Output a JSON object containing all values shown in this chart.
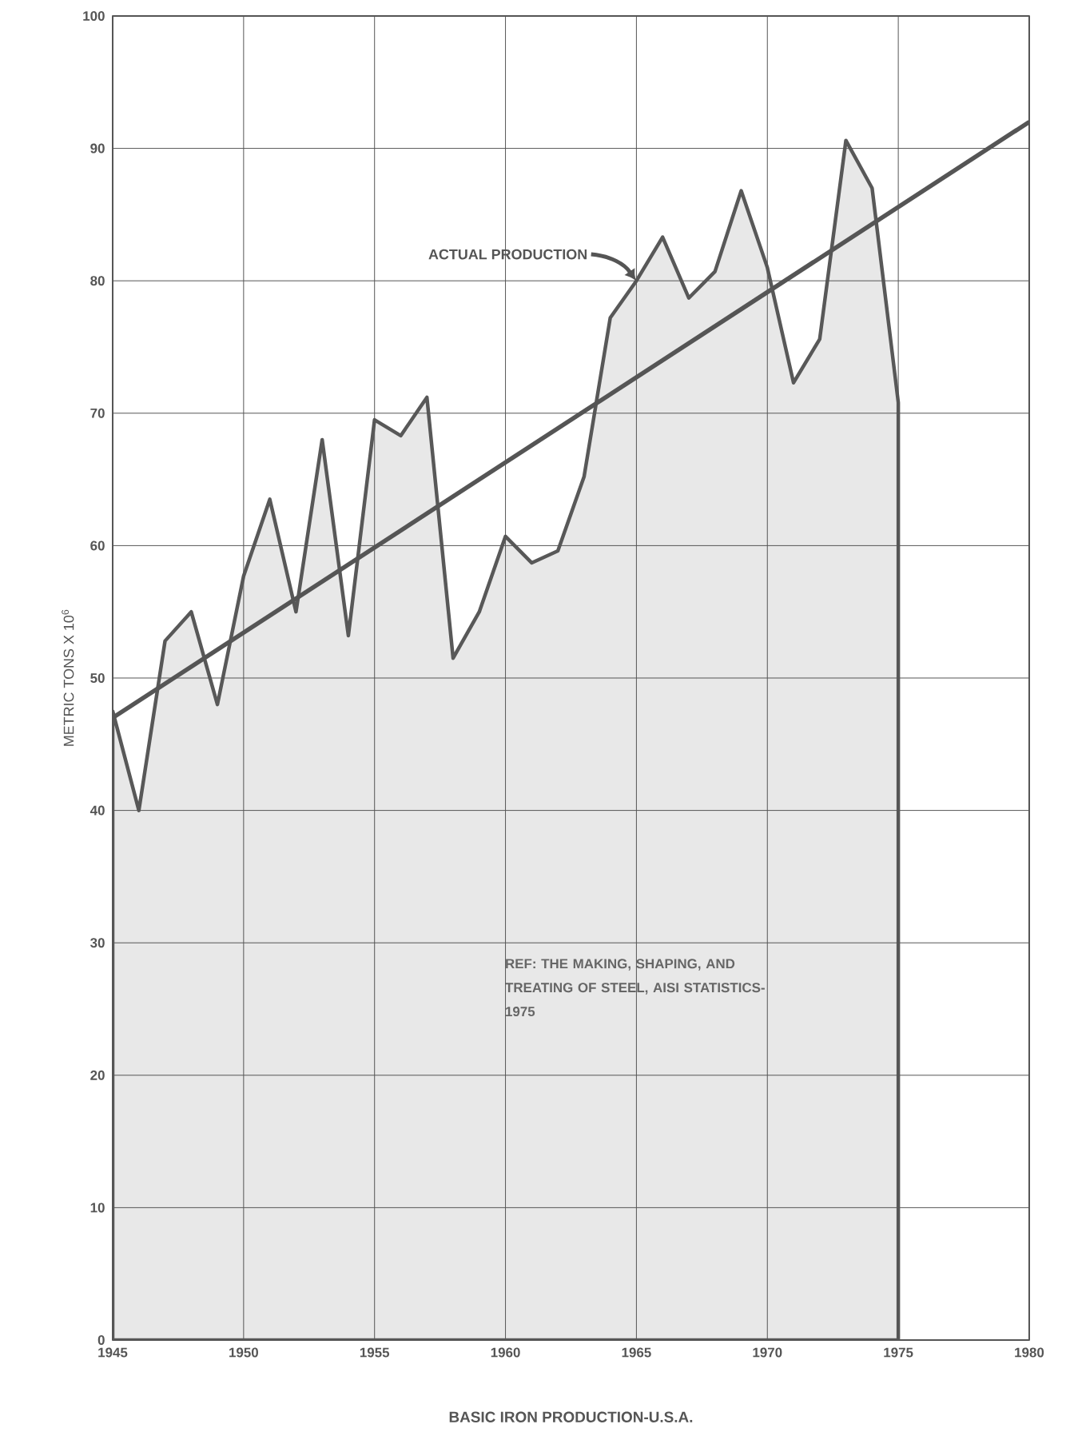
{
  "chart_data": {
    "type": "area",
    "title": "BASIC IRON PRODUCTION-U.S.A.",
    "ylabel": "METRIC TONS X 10$^{6}$",
    "x": [
      1945,
      1946,
      1947,
      1948,
      1949,
      1950,
      1951,
      1952,
      1953,
      1954,
      1955,
      1956,
      1957,
      1958,
      1959,
      1960,
      1961,
      1962,
      1963,
      1964,
      1965,
      1966,
      1967,
      1968,
      1969,
      1970,
      1971,
      1972,
      1973,
      1974,
      1975
    ],
    "series": [
      {
        "color": "#e8e8e8",
        "values": [
          47.5,
          40,
          52.8,
          55,
          48,
          57.7,
          63.5,
          55,
          68,
          53.2,
          69.5,
          68.3,
          71.2,
          51.5,
          55,
          60.7,
          58.7,
          59.6,
          65.2,
          77.2,
          80,
          83.3,
          78.7,
          80.7,
          86.8,
          81,
          72.3,
          75.6,
          90.6,
          87,
          70.8
        ]
      },
      {
        "type": "line",
        "color": "#555555",
        "x": [
          1945,
          1980
        ],
        "values": [
          47,
          92
        ]
      }
    ],
    "xlim": [
      1945,
      1980
    ],
    "ylim": [
      0,
      100
    ],
    "xticks": [
      1945,
      1950,
      1955,
      1960,
      1965,
      1970,
      1975,
      1980
    ],
    "yticks": [
      0,
      10,
      20,
      30,
      40,
      50,
      60,
      70,
      80,
      90,
      100
    ],
    "grid": true,
    "annotations": [
      "ACTUAL PRODUCTION",
      "REF: THE MAKING, SHAPING, AND TREATING OF STEEL, AISI STATISTICS-1975"
    ]
  }
}
